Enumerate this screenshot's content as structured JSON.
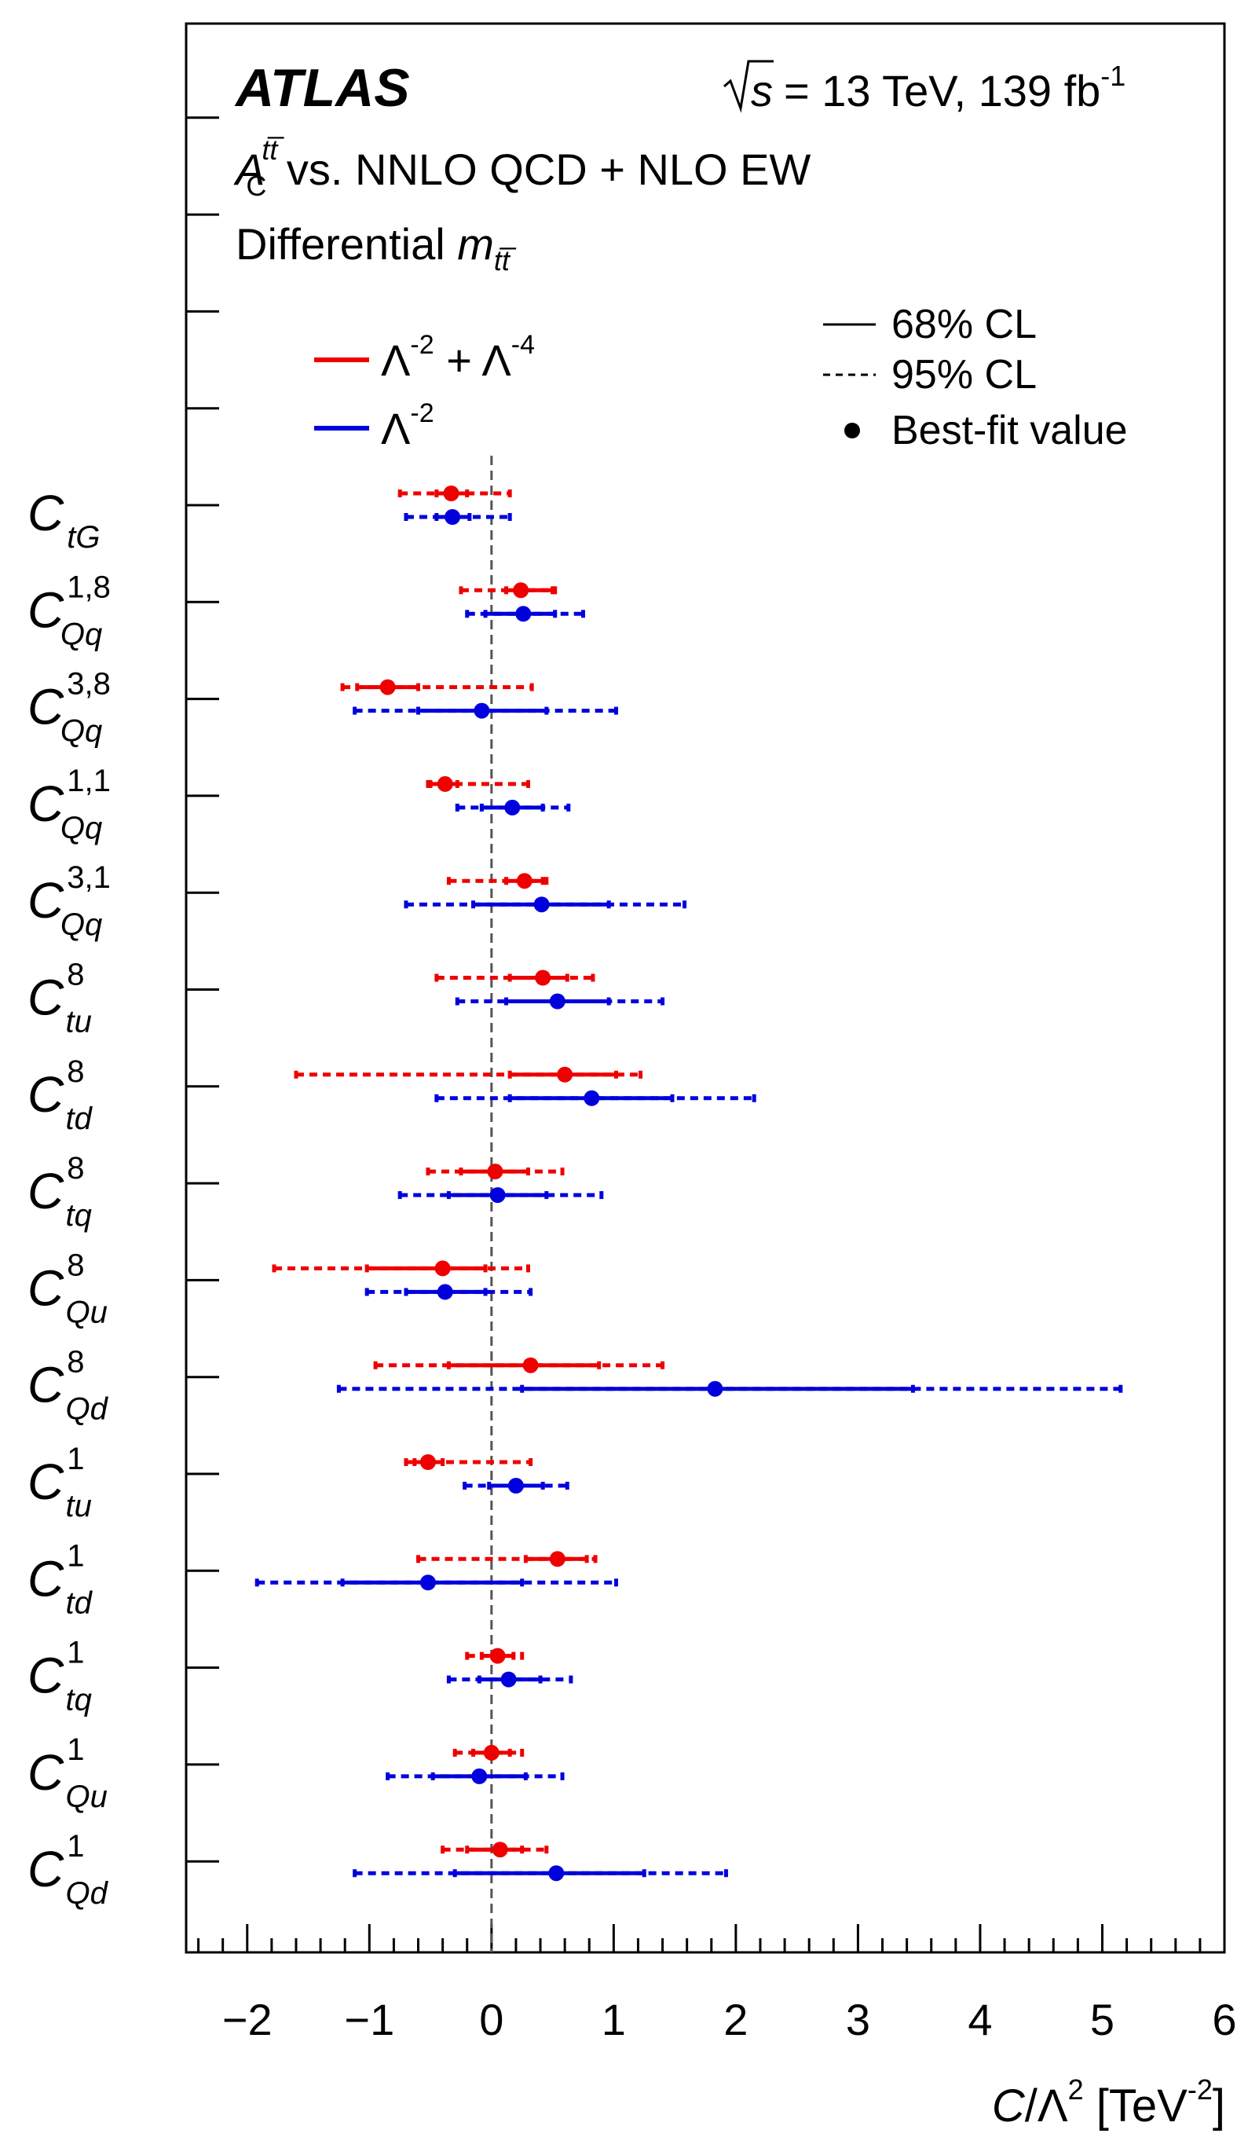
{
  "header": {
    "experiment": "ATLAS",
    "sqrt_s_label": "s",
    "energy_lumi": "= 13 TeV, 139 fb",
    "lumi_exp": "-1",
    "observable_A": "A",
    "observable_sup": "tt̅",
    "observable_sub": "C",
    "observable_rest": " vs. NNLO QCD + NLO EW",
    "differential_word": "Differential ",
    "differential_var": "m",
    "differential_sub": "tt̅"
  },
  "legend": {
    "cl68": "68% CL",
    "cl95": "95% CL",
    "best_fit": "Best-fit value",
    "series": [
      {
        "base1": "Λ",
        "exp1": "-2",
        "plus": " + ",
        "base2": "Λ",
        "exp2": "-4",
        "color": "#ee0000"
      },
      {
        "base1": "Λ",
        "exp1": "-2",
        "color": "#0000dd"
      }
    ]
  },
  "chart_data": {
    "type": "scatter",
    "title": "",
    "xlabel_var": "C",
    "xlabel_mid": "/Λ",
    "xlabel_exp": "2",
    "xlabel_unit": " [TeV",
    "xlabel_unit_exp": "-2",
    "xlabel_close": "]",
    "xlim": [
      -2.5,
      6
    ],
    "x_ticks": [
      "−2",
      "−1",
      "0",
      "1",
      "2",
      "3",
      "4",
      "5",
      "6"
    ],
    "x_tick_values": [
      -2,
      -1,
      0,
      1,
      2,
      3,
      4,
      5,
      6
    ],
    "reference_line": 0,
    "series_names": [
      "Λ^-2 + Λ^-4",
      "Λ^-2"
    ],
    "coefficients": [
      {
        "base": "C",
        "sub": "tG",
        "sup": "",
        "quad": {
          "best": -0.33,
          "cl68": [
            -0.45,
            -0.2
          ],
          "cl95": [
            -0.75,
            0.15
          ]
        },
        "lin": {
          "best": -0.32,
          "cl68": [
            -0.45,
            -0.18
          ],
          "cl95": [
            -0.7,
            0.15
          ]
        }
      },
      {
        "base": "C",
        "sub": "Qq",
        "sup": "1,8",
        "quad": {
          "best": 0.24,
          "cl68": [
            0.12,
            0.5
          ],
          "cl95": [
            -0.25,
            0.52
          ]
        },
        "lin": {
          "best": 0.26,
          "cl68": [
            -0.05,
            0.52
          ],
          "cl95": [
            -0.2,
            0.75
          ]
        }
      },
      {
        "base": "C",
        "sub": "Qq",
        "sup": "3,8",
        "quad": {
          "best": -0.85,
          "cl68": [
            -1.1,
            -0.6
          ],
          "cl95": [
            -1.22,
            0.33
          ]
        },
        "lin": {
          "best": -0.08,
          "cl68": [
            -0.6,
            0.45
          ],
          "cl95": [
            -1.12,
            1.02
          ]
        }
      },
      {
        "base": "C",
        "sub": "Qq",
        "sup": "1,1",
        "quad": {
          "best": -0.38,
          "cl68": [
            -0.5,
            -0.28
          ],
          "cl95": [
            -0.52,
            0.3
          ]
        },
        "lin": {
          "best": 0.17,
          "cl68": [
            -0.08,
            0.42
          ],
          "cl95": [
            -0.28,
            0.63
          ]
        }
      },
      {
        "base": "C",
        "sub": "Qq",
        "sup": "3,1",
        "quad": {
          "best": 0.27,
          "cl68": [
            0.12,
            0.42
          ],
          "cl95": [
            -0.35,
            0.45
          ]
        },
        "lin": {
          "best": 0.41,
          "cl68": [
            -0.15,
            0.96
          ],
          "cl95": [
            -0.7,
            1.58
          ]
        }
      },
      {
        "base": "C",
        "sub": "tu",
        "sup": "8",
        "quad": {
          "best": 0.42,
          "cl68": [
            0.15,
            0.62
          ],
          "cl95": [
            -0.45,
            0.83
          ]
        },
        "lin": {
          "best": 0.54,
          "cl68": [
            0.12,
            0.96
          ],
          "cl95": [
            -0.28,
            1.4
          ]
        }
      },
      {
        "base": "C",
        "sub": "td",
        "sup": "8",
        "quad": {
          "best": 0.6,
          "cl68": [
            0.15,
            1.02
          ],
          "cl95": [
            -1.6,
            1.22
          ]
        },
        "lin": {
          "best": 0.82,
          "cl68": [
            0.15,
            1.48
          ],
          "cl95": [
            -0.45,
            2.15
          ]
        }
      },
      {
        "base": "C",
        "sub": "tq",
        "sup": "8",
        "quad": {
          "best": 0.03,
          "cl68": [
            -0.25,
            0.3
          ],
          "cl95": [
            -0.52,
            0.58
          ]
        },
        "lin": {
          "best": 0.05,
          "cl68": [
            -0.35,
            0.45
          ],
          "cl95": [
            -0.75,
            0.9
          ]
        }
      },
      {
        "base": "C",
        "sub": "Qu",
        "sup": "8",
        "quad": {
          "best": -0.4,
          "cl68": [
            -1.02,
            -0.05
          ],
          "cl95": [
            -1.78,
            0.3
          ]
        },
        "lin": {
          "best": -0.38,
          "cl68": [
            -0.7,
            -0.05
          ],
          "cl95": [
            -1.02,
            0.32
          ]
        }
      },
      {
        "base": "C",
        "sub": "Qd",
        "sup": "8",
        "quad": {
          "best": 0.32,
          "cl68": [
            -0.35,
            0.88
          ],
          "cl95": [
            -0.95,
            1.4
          ]
        },
        "lin": {
          "best": 1.83,
          "cl68": [
            0.25,
            3.45
          ],
          "cl95": [
            -1.25,
            5.15
          ]
        }
      },
      {
        "base": "C",
        "sub": "tu",
        "sup": "1",
        "quad": {
          "best": -0.52,
          "cl68": [
            -0.63,
            -0.4
          ],
          "cl95": [
            -0.7,
            0.32
          ]
        },
        "lin": {
          "best": 0.2,
          "cl68": [
            -0.02,
            0.42
          ],
          "cl95": [
            -0.22,
            0.62
          ]
        }
      },
      {
        "base": "C",
        "sub": "td",
        "sup": "1",
        "quad": {
          "best": 0.54,
          "cl68": [
            0.28,
            0.78
          ],
          "cl95": [
            -0.6,
            0.85
          ]
        },
        "lin": {
          "best": -0.52,
          "cl68": [
            -1.22,
            0.25
          ],
          "cl95": [
            -1.92,
            1.02
          ]
        }
      },
      {
        "base": "C",
        "sub": "tq",
        "sup": "1",
        "quad": {
          "best": 0.05,
          "cl68": [
            -0.08,
            0.18
          ],
          "cl95": [
            -0.2,
            0.25
          ]
        },
        "lin": {
          "best": 0.14,
          "cl68": [
            -0.1,
            0.4
          ],
          "cl95": [
            -0.35,
            0.65
          ]
        }
      },
      {
        "base": "C",
        "sub": "Qu",
        "sup": "1",
        "quad": {
          "best": 0.0,
          "cl68": [
            -0.15,
            0.15
          ],
          "cl95": [
            -0.3,
            0.25
          ]
        },
        "lin": {
          "best": -0.1,
          "cl68": [
            -0.48,
            0.28
          ],
          "cl95": [
            -0.85,
            0.58
          ]
        }
      },
      {
        "base": "C",
        "sub": "Qd",
        "sup": "1",
        "quad": {
          "best": 0.07,
          "cl68": [
            -0.2,
            0.25
          ],
          "cl95": [
            -0.4,
            0.45
          ]
        },
        "lin": {
          "best": 0.53,
          "cl68": [
            -0.3,
            1.25
          ],
          "cl95": [
            -1.12,
            1.92
          ]
        }
      }
    ]
  }
}
